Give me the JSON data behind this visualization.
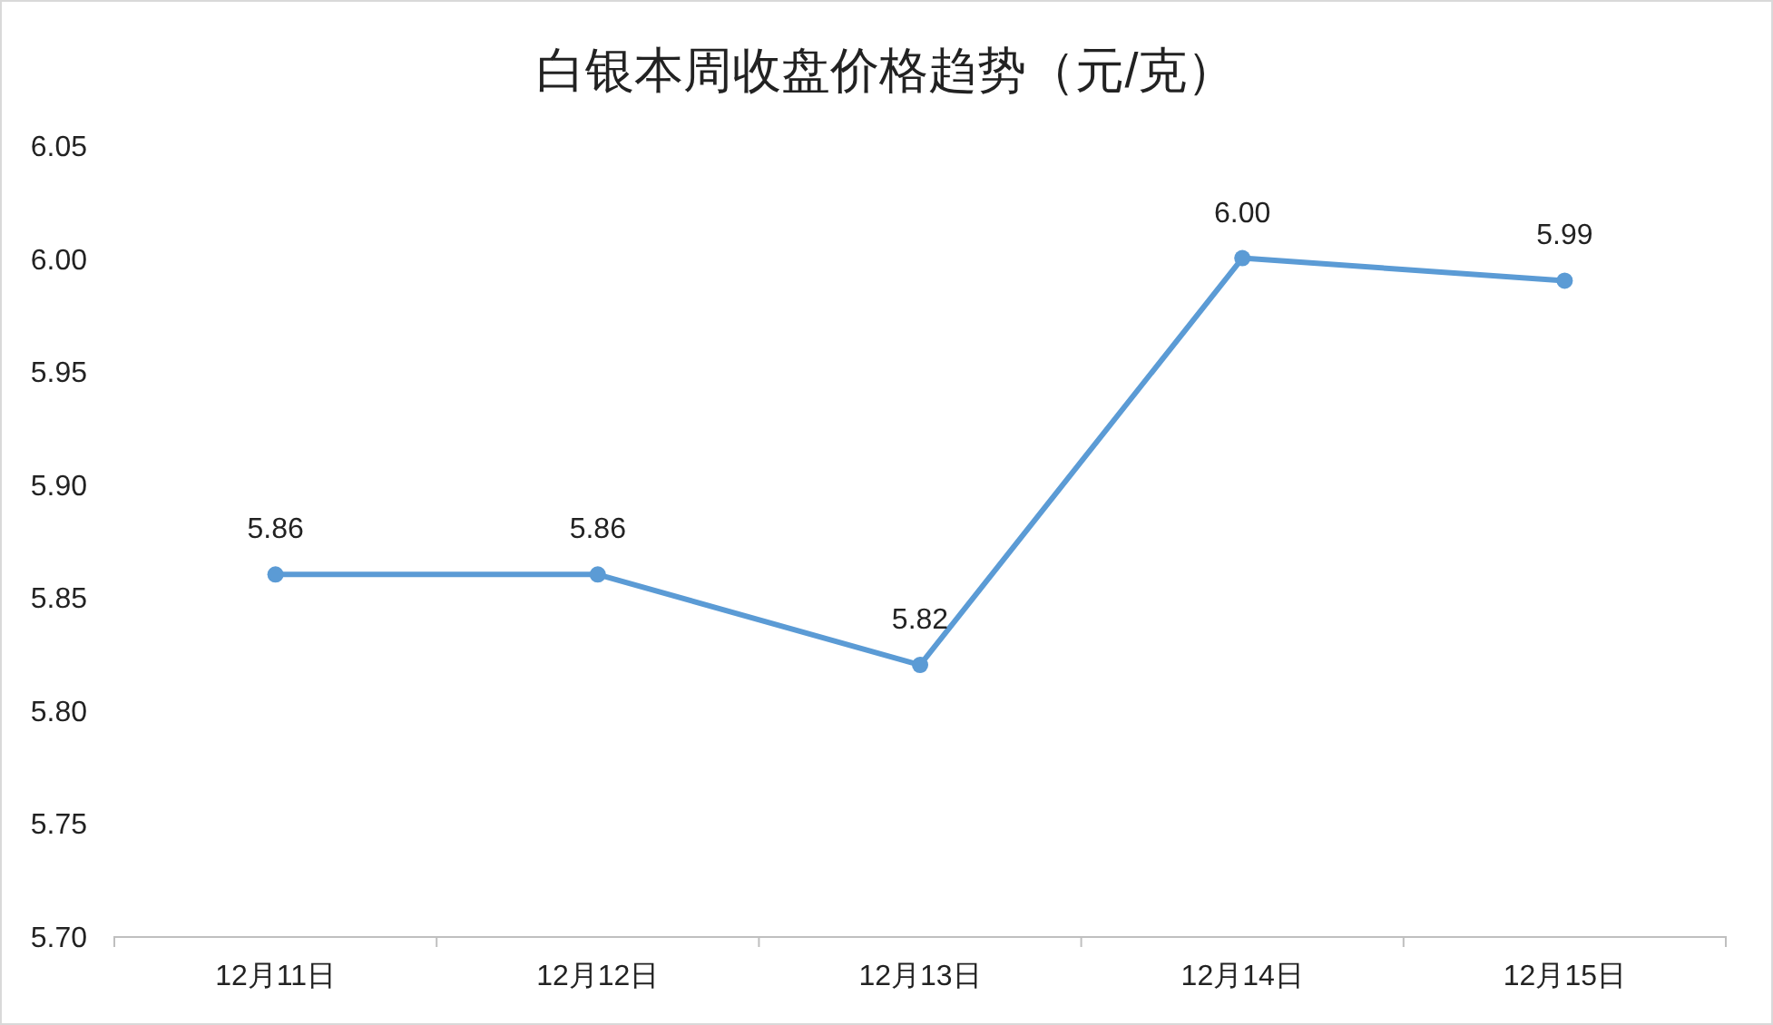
{
  "chart_data": {
    "type": "line",
    "title": "白银本周收盘价格趋势（元/克）",
    "categories": [
      "12月11日",
      "12月12日",
      "12月13日",
      "12月14日",
      "12月15日"
    ],
    "series": [
      {
        "color": "#5b9bd5",
        "values": [
          5.86,
          5.86,
          5.82,
          6.0,
          5.99
        ],
        "value_labels": [
          "5.86",
          "5.86",
          "5.82",
          "6.00",
          "5.99"
        ]
      }
    ],
    "ylim": [
      5.7,
      6.05
    ],
    "yticks": [
      {
        "value": 5.7,
        "label": "5.70"
      },
      {
        "value": 5.75,
        "label": "5.75"
      },
      {
        "value": 5.8,
        "label": "5.80"
      },
      {
        "value": 5.85,
        "label": "5.85"
      },
      {
        "value": 5.9,
        "label": "5.90"
      },
      {
        "value": 5.95,
        "label": "5.95"
      },
      {
        "value": 6.0,
        "label": "6.00"
      },
      {
        "value": 6.05,
        "label": "6.05"
      }
    ],
    "grid": false,
    "marker": "circle",
    "line_style": "solid"
  }
}
